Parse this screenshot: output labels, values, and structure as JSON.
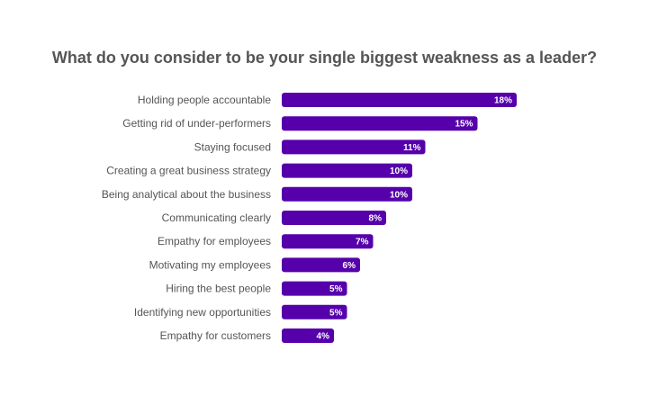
{
  "chart_data": {
    "type": "bar",
    "orientation": "horizontal",
    "title": "What do you consider to be your single biggest weakness as a leader?",
    "categories": [
      "Holding people accountable",
      "Getting rid of under-performers",
      "Staying focused",
      "Creating a great business strategy",
      "Being analytical about the business",
      "Communicating clearly",
      "Empathy for employees",
      "Motivating my employees",
      "Hiring the best people",
      "Identifying new opportunities",
      "Empathy for customers"
    ],
    "values": [
      18,
      15,
      11,
      10,
      10,
      8,
      7,
      6,
      5,
      5,
      4
    ],
    "value_suffix": "%",
    "bar_color": "#5500aa",
    "grid": false,
    "legend": "none"
  }
}
